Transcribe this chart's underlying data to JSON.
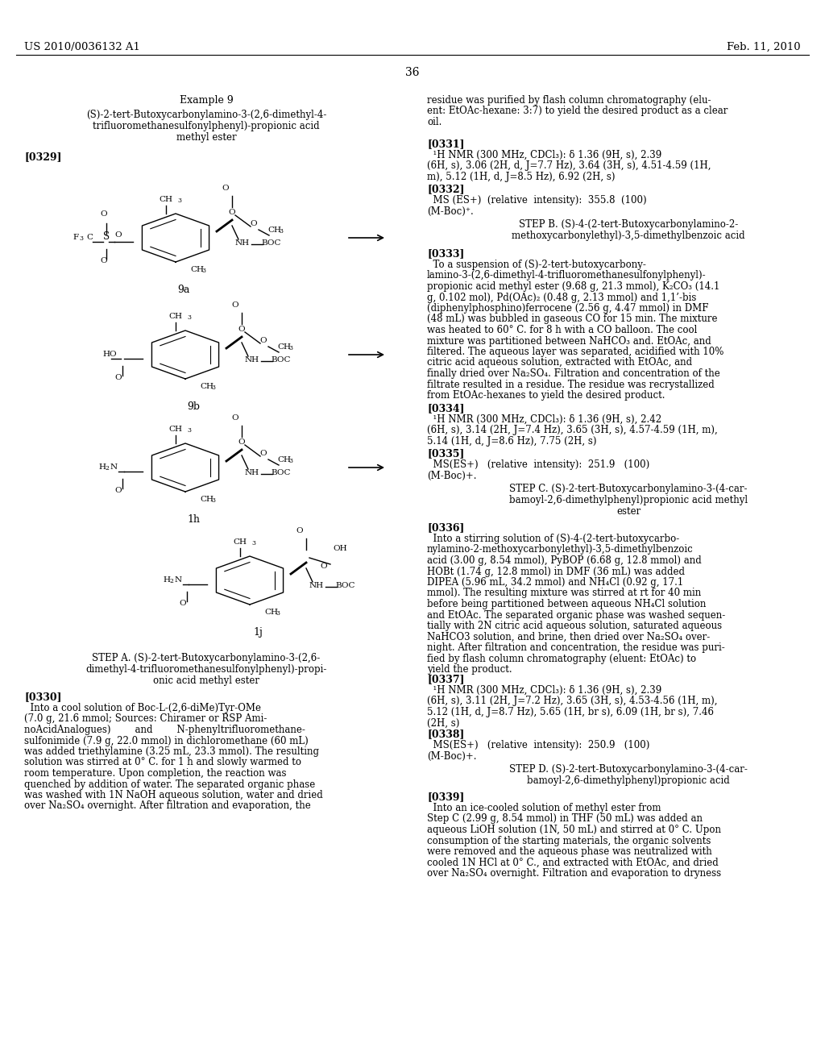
{
  "figsize": [
    10.24,
    13.2
  ],
  "dpi": 100,
  "bg": "#ffffff",
  "header_left": "US 2010/0036132 A1",
  "header_right": "Feb. 11, 2010",
  "page_num": "36",
  "font_family": "DejaVu Serif"
}
